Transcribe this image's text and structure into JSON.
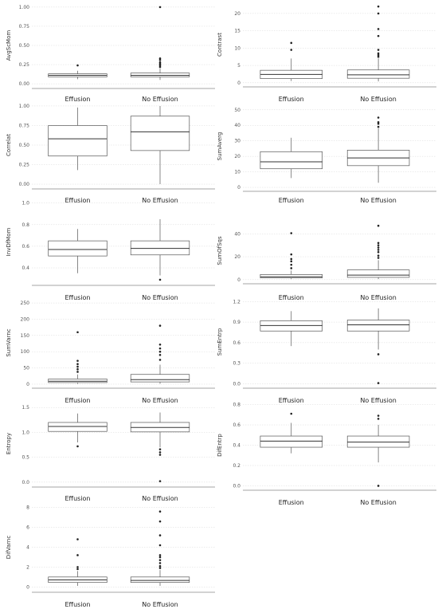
{
  "chart_data": [
    {
      "type": "box",
      "ylabel": "AvgScMom",
      "categories": [
        "Effusion",
        "No Effusion"
      ],
      "yticks": [
        0,
        0.25,
        0.5,
        0.75,
        1.0
      ],
      "tick_labels": [
        "0.00",
        "0.25",
        "0.50",
        "0.75",
        "1.00"
      ],
      "ylim": [
        -0.03,
        1.03
      ],
      "boxes": [
        {
          "whisker_low": 0.06,
          "q1": 0.09,
          "median": 0.11,
          "q3": 0.13,
          "whisker_high": 0.17,
          "outliers": [
            0.24
          ]
        },
        {
          "whisker_low": 0.05,
          "q1": 0.09,
          "median": 0.11,
          "q3": 0.14,
          "whisker_high": 0.2,
          "outliers": [
            0.22,
            0.24,
            0.26,
            0.28,
            0.31,
            0.33,
            1.0
          ]
        }
      ]
    },
    {
      "type": "box",
      "ylabel": "Contrast",
      "categories": [
        "Effusion",
        "No Effusion"
      ],
      "yticks": [
        0,
        5,
        10,
        15,
        20
      ],
      "tick_labels": [
        "0",
        "5",
        "10",
        "15",
        "20"
      ],
      "ylim": [
        -0.5,
        22.5
      ],
      "boxes": [
        {
          "whisker_low": 0.5,
          "q1": 1.2,
          "median": 2.4,
          "q3": 3.6,
          "whisker_high": 7.0,
          "outliers": [
            9.5,
            11.5
          ]
        },
        {
          "whisker_low": 0.4,
          "q1": 1.3,
          "median": 2.3,
          "q3": 3.7,
          "whisker_high": 7.0,
          "outliers": [
            7.5,
            8.0,
            8.5,
            9.5,
            13.5,
            15.5,
            20.0,
            22.0
          ]
        }
      ]
    },
    {
      "type": "box",
      "ylabel": "Correlat",
      "categories": [
        "Effusion",
        "No Effusion"
      ],
      "yticks": [
        0,
        0.25,
        0.5,
        0.75,
        1.0
      ],
      "tick_labels": [
        "0.00",
        "0.25",
        "0.50",
        "0.75",
        "1.00"
      ],
      "ylim": [
        -0.03,
        1.03
      ],
      "boxes": [
        {
          "whisker_low": 0.18,
          "q1": 0.36,
          "median": 0.58,
          "q3": 0.75,
          "whisker_high": 0.98,
          "outliers": []
        },
        {
          "whisker_low": 0.0,
          "q1": 0.43,
          "median": 0.67,
          "q3": 0.87,
          "whisker_high": 1.0,
          "outliers": []
        }
      ]
    },
    {
      "type": "box",
      "ylabel": "SumAverg",
      "categories": [
        "Effusion",
        "No Effusion"
      ],
      "yticks": [
        0,
        10,
        20,
        30,
        40,
        50
      ],
      "tick_labels": [
        "0",
        "10",
        "20",
        "30",
        "40",
        "50"
      ],
      "ylim": [
        -1,
        54
      ],
      "boxes": [
        {
          "whisker_low": 6,
          "q1": 12,
          "median": 16.5,
          "q3": 23,
          "whisker_high": 32,
          "outliers": []
        },
        {
          "whisker_low": 3,
          "q1": 14,
          "median": 19,
          "q3": 24,
          "whisker_high": 38,
          "outliers": [
            39,
            41,
            42,
            45
          ]
        }
      ]
    },
    {
      "type": "box",
      "ylabel": "InvDfMom",
      "categories": [
        "Effusion",
        "No Effusion"
      ],
      "yticks": [
        0.4,
        0.6,
        0.8,
        1.0
      ],
      "tick_labels": [
        "0.4",
        "0.6",
        "0.8",
        "1.0"
      ],
      "ylim": [
        0.26,
        1.02
      ],
      "boxes": [
        {
          "whisker_low": 0.35,
          "q1": 0.51,
          "median": 0.57,
          "q3": 0.65,
          "whisker_high": 0.76,
          "outliers": []
        },
        {
          "whisker_low": 0.33,
          "q1": 0.52,
          "median": 0.58,
          "q3": 0.65,
          "whisker_high": 0.85,
          "outliers": [
            0.29
          ]
        }
      ]
    },
    {
      "type": "box",
      "ylabel": "SumOfSqs",
      "categories": [
        "Effusion",
        "No Effusion"
      ],
      "yticks": [
        0,
        20,
        40
      ],
      "tick_labels": [
        "0",
        "20",
        "40"
      ],
      "ylim": [
        -1.5,
        52
      ],
      "boxes": [
        {
          "whisker_low": 0.5,
          "q1": 1.5,
          "median": 2.5,
          "q3": 4.5,
          "whisker_high": 8,
          "outliers": [
            10,
            13,
            16,
            18,
            22,
            40.5
          ]
        },
        {
          "whisker_low": 0.5,
          "q1": 2,
          "median": 4,
          "q3": 8.5,
          "whisker_high": 17,
          "outliers": [
            19,
            21,
            24,
            26,
            28,
            30,
            32,
            47
          ]
        }
      ]
    },
    {
      "type": "box",
      "ylabel": "SumVarnc",
      "categories": [
        "Effusion",
        "No Effusion"
      ],
      "yticks": [
        0,
        50,
        100,
        150,
        200,
        250
      ],
      "tick_labels": [
        "0",
        "50",
        "100",
        "150",
        "200",
        "250"
      ],
      "ylim": [
        -5,
        260
      ],
      "boxes": [
        {
          "whisker_low": 1,
          "q1": 5,
          "median": 9,
          "q3": 16,
          "whisker_high": 30,
          "outliers": [
            38,
            46,
            54,
            62,
            72,
            160
          ]
        },
        {
          "whisker_low": 1,
          "q1": 7,
          "median": 14,
          "q3": 30,
          "whisker_high": 60,
          "outliers": [
            75,
            90,
            100,
            110,
            122,
            180
          ]
        }
      ]
    },
    {
      "type": "box",
      "ylabel": "SumEntrp",
      "categories": [
        "Effusion",
        "No Effusion"
      ],
      "yticks": [
        0.0,
        0.3,
        0.6,
        0.9,
        1.2
      ],
      "tick_labels": [
        "0.0",
        "0.3",
        "0.6",
        "0.9",
        "1.2"
      ],
      "ylim": [
        -0.03,
        1.25
      ],
      "boxes": [
        {
          "whisker_low": 0.55,
          "q1": 0.77,
          "median": 0.85,
          "q3": 0.92,
          "whisker_high": 1.06,
          "outliers": []
        },
        {
          "whisker_low": 0.5,
          "q1": 0.77,
          "median": 0.86,
          "q3": 0.93,
          "whisker_high": 1.1,
          "outliers": [
            0.43,
            0.01
          ]
        }
      ]
    },
    {
      "type": "box",
      "ylabel": "Entropy",
      "categories": [
        "Effusion",
        "No Effusion"
      ],
      "yticks": [
        0.0,
        0.5,
        1.0,
        1.5
      ],
      "tick_labels": [
        "0.0",
        "0.5",
        "1.0",
        "1.5"
      ],
      "ylim": [
        -0.05,
        1.6
      ],
      "boxes": [
        {
          "whisker_low": 0.8,
          "q1": 1.02,
          "median": 1.12,
          "q3": 1.2,
          "whisker_high": 1.38,
          "outliers": [
            0.72
          ]
        },
        {
          "whisker_low": 0.7,
          "q1": 1.01,
          "median": 1.1,
          "q3": 1.2,
          "whisker_high": 1.4,
          "outliers": [
            0.66,
            0.6,
            0.55,
            0.02
          ]
        }
      ]
    },
    {
      "type": "box",
      "ylabel": "DifEntrp",
      "categories": [
        "Effusion",
        "No Effusion"
      ],
      "yticks": [
        0.0,
        0.2,
        0.4,
        0.6,
        0.8
      ],
      "tick_labels": [
        "0.0",
        "0.2",
        "0.4",
        "0.6",
        "0.8"
      ],
      "ylim": [
        -0.02,
        0.82
      ],
      "boxes": [
        {
          "whisker_low": 0.32,
          "q1": 0.38,
          "median": 0.44,
          "q3": 0.49,
          "whisker_high": 0.62,
          "outliers": [
            0.71
          ]
        },
        {
          "whisker_low": 0.23,
          "q1": 0.38,
          "median": 0.43,
          "q3": 0.49,
          "whisker_high": 0.6,
          "outliers": [
            0.66,
            0.69,
            0.0
          ]
        }
      ]
    },
    {
      "type": "box",
      "ylabel": "DifVarnc",
      "categories": [
        "Effusion",
        "No Effusion"
      ],
      "yticks": [
        0,
        2,
        4,
        6,
        8
      ],
      "tick_labels": [
        "0",
        "2",
        "4",
        "6",
        "8"
      ],
      "ylim": [
        -0.3,
        8.3
      ],
      "boxes": [
        {
          "whisker_low": 0.1,
          "q1": 0.45,
          "median": 0.7,
          "q3": 1.0,
          "whisker_high": 1.6,
          "outliers": [
            1.8,
            2.0,
            3.2,
            4.8
          ]
        },
        {
          "whisker_low": 0.1,
          "q1": 0.45,
          "median": 0.65,
          "q3": 1.0,
          "whisker_high": 1.7,
          "outliers": [
            1.9,
            2.1,
            2.4,
            2.7,
            3.0,
            3.2,
            4.2,
            5.2,
            6.6,
            7.6
          ]
        }
      ]
    }
  ]
}
